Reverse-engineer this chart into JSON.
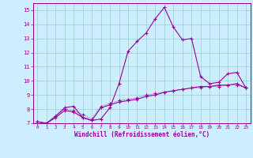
{
  "xlabel": "Windchill (Refroidissement éolien,°C)",
  "bg_color": "#cceeff",
  "grid_color": "#99cccc",
  "line_color": "#990099",
  "xlim": [
    -0.5,
    23.5
  ],
  "ylim": [
    7,
    15.5
  ],
  "yticks": [
    7,
    8,
    9,
    10,
    11,
    12,
    13,
    14,
    15
  ],
  "xticks": [
    0,
    1,
    2,
    3,
    4,
    5,
    6,
    7,
    8,
    9,
    10,
    11,
    12,
    13,
    14,
    15,
    16,
    17,
    18,
    19,
    20,
    21,
    22,
    23
  ],
  "series1_x": [
    0,
    1,
    2,
    3,
    4,
    5,
    6,
    7,
    8,
    9,
    10,
    11,
    12,
    13,
    14,
    15,
    16,
    17,
    18,
    19,
    20,
    21,
    22,
    23
  ],
  "series1_y": [
    7.1,
    7.0,
    7.5,
    8.1,
    8.2,
    7.4,
    7.2,
    7.3,
    8.1,
    9.8,
    12.1,
    12.8,
    13.4,
    14.4,
    15.2,
    13.8,
    12.9,
    13.0,
    10.3,
    9.8,
    9.9,
    10.5,
    10.6,
    9.5
  ],
  "series1_style": "-",
  "series2_x": [
    0,
    1,
    2,
    3,
    4,
    5,
    6,
    7,
    8,
    9,
    10,
    11,
    12,
    13,
    14,
    15,
    16,
    17,
    18,
    19,
    20,
    21,
    22,
    23
  ],
  "series2_y": [
    7.1,
    7.0,
    7.4,
    7.9,
    7.8,
    7.4,
    7.2,
    8.1,
    8.3,
    8.5,
    8.6,
    8.7,
    8.9,
    9.0,
    9.2,
    9.3,
    9.4,
    9.5,
    9.6,
    9.6,
    9.7,
    9.7,
    9.8,
    9.5
  ],
  "series2_style": "-",
  "series3_x": [
    0,
    1,
    2,
    3,
    4,
    5,
    6,
    7,
    8,
    9,
    10,
    11,
    12,
    13,
    14,
    15,
    16,
    17,
    18,
    19,
    20,
    21,
    22,
    23
  ],
  "series3_y": [
    7.1,
    7.0,
    7.5,
    8.0,
    7.9,
    7.6,
    7.3,
    8.2,
    8.4,
    8.6,
    8.7,
    8.8,
    9.0,
    9.1,
    9.2,
    9.3,
    9.4,
    9.5,
    9.5,
    9.6,
    9.6,
    9.7,
    9.7,
    9.5
  ],
  "series3_style": ":"
}
